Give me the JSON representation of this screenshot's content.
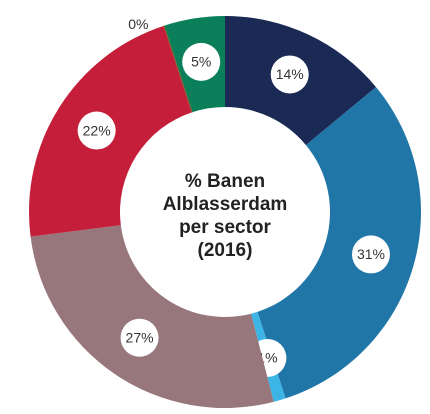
{
  "chart_data": {
    "type": "donut",
    "title": [
      "% Banen",
      "Alblasserdam",
      "per sector",
      "(2016)"
    ],
    "categories": [
      null,
      null,
      null,
      null,
      null,
      null,
      null
    ],
    "values": [
      14,
      31,
      1,
      27,
      22,
      0,
      5
    ],
    "value_labels": [
      "14%",
      "31%",
      "1%",
      "27%",
      "22%",
      "0%",
      "5%"
    ],
    "colors": [
      "#1b2a55",
      "#2176a8",
      "#3cb4e5",
      "#97777c",
      "#c41e3a",
      "#8a6d3b",
      "#0a7f5a"
    ]
  }
}
